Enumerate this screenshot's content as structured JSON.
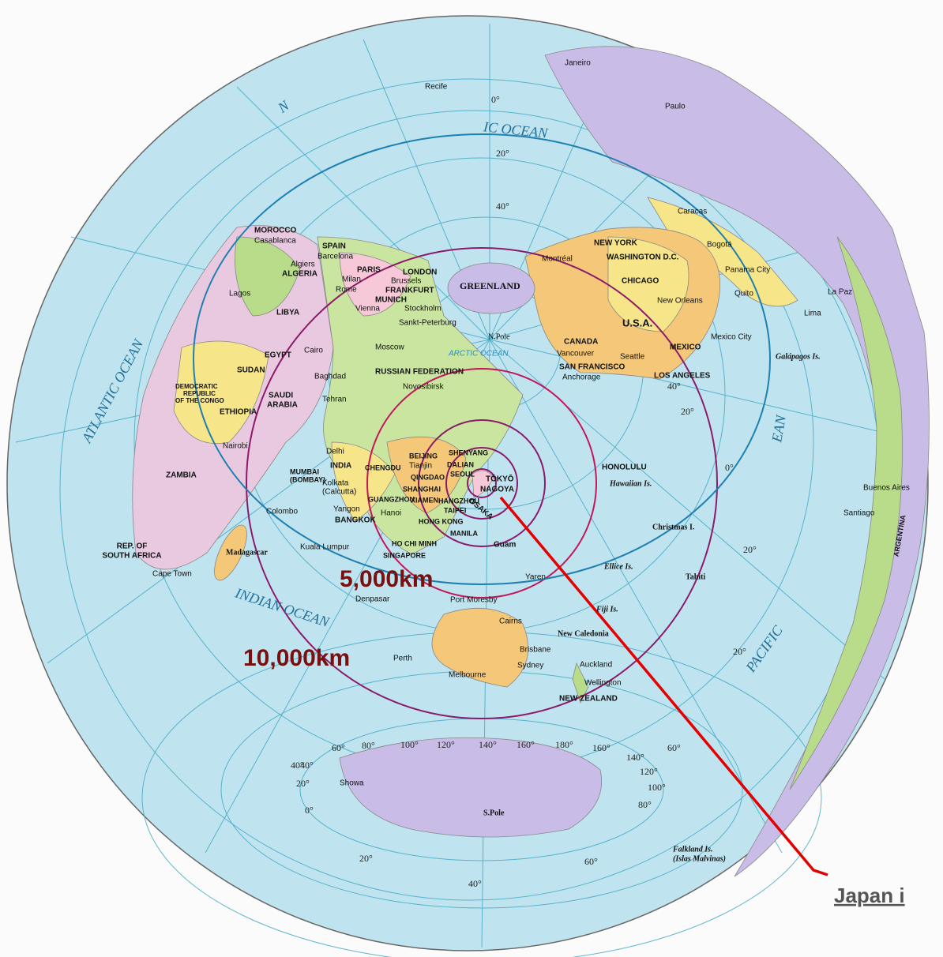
{
  "map": {
    "labels": [
      "Janeiro",
      "Recife",
      "Paulo",
      "IC OCEAN",
      "Caracas",
      "Bogotá",
      "NEW YORK",
      "WASHINGTON D.C.",
      "Montréal",
      "Panama City",
      "Quito",
      "La Paz",
      "Lima",
      "CHICAGO",
      "New Orleans",
      "U.S.A.",
      "Mexico City",
      "MEXICO",
      "Galápagos Is.",
      "CANADA",
      "Vancouver",
      "Seattle",
      "SAN FRANCISCO",
      "Anchorage",
      "LOS ANGELES",
      "GREENLAND",
      "N.Pole",
      "ARCTIC OCEAN",
      "MOROCCO",
      "Casablanca",
      "SPAIN",
      "Barcelona",
      "Algiers",
      "ALGERIA",
      "PARIS",
      "LONDON",
      "Brussels",
      "FRANKFURT",
      "Milan",
      "Rome",
      "MUNICH",
      "Stockholm",
      "Vienna",
      "Sankt-Peterburg",
      "Lagos",
      "LIBYA",
      "Moscow",
      "EGYPT",
      "Cairo",
      "SUDAN",
      "RUSSIAN FEDERATION",
      "Baghdad",
      "Novosibirsk",
      "DEMOCRATIC",
      "REPUBLIC",
      "OF THE CONGO",
      "SAUDI",
      "ARABIA",
      "Tehran",
      "ETHIOPIA",
      "Nairobi",
      "Delhi",
      "INDIA",
      "ZAMBIA",
      "MUMBAI",
      "(BOMBAY)",
      "Kolkata",
      "(Calcutta)",
      "Colombo",
      "Yangon",
      "BANGKOK",
      "BEIJING",
      "Tianjin",
      "SHENYANG",
      "DALIAN",
      "SEOUL",
      "QINGDAO",
      "CHENGDU",
      "SHANGHAI",
      "XIAMEN",
      "GUANGZHOU",
      "Hanoi",
      "HANGZHOU",
      "TAIPEI",
      "HONG KONG",
      "MANILA",
      "HO CHI MINH",
      "TŌKYŌ",
      "NAGOYA",
      "OSAKA",
      "Guam",
      "Kuala Lumpur",
      "SINGAPORE",
      "REP. OF",
      "SOUTH AFRICA",
      "Cape Town",
      "Madagascar",
      "HONOLULU",
      "Hawaiian Is.",
      "Christmas I.",
      "Ellice Is.",
      "Yaren",
      "Tahiti",
      "Denpasar",
      "Port Moresby",
      "Fiji Is.",
      "Cairns",
      "New Caledonia",
      "Perth",
      "Brisbane",
      "Sydney",
      "Auckland",
      "Melbourne",
      "Wellington",
      "NEW ZEALAND",
      "Buenos Aires",
      "Santiago",
      "ARGENTINA",
      "Falkland Is.",
      "(Islas Malvinas)",
      "Showa",
      "S.Pole",
      "ATLANTIC OCEAN",
      "INDIAN OCEAN",
      "PACIFIC",
      "EAN",
      "N"
    ],
    "degree_labels": [
      "0°",
      "20°",
      "40°",
      "40°",
      "20°",
      "20°",
      "0°",
      "20°",
      "40°",
      "60°",
      "80°",
      "100°",
      "120°",
      "140°",
      "160°",
      "180°",
      "160°",
      "140°",
      "120°",
      "100°",
      "80°",
      "60°",
      "40°",
      "20°",
      "0°",
      "20°",
      "40°",
      "60°"
    ],
    "distance_labels": [
      "5,000km",
      "10,000km"
    ],
    "callout": "Japan i"
  }
}
